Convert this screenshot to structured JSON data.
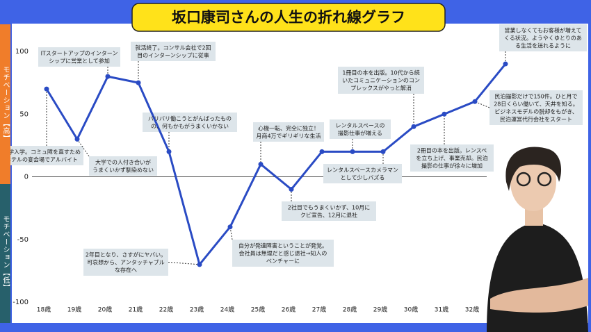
{
  "chart_data": {
    "type": "line",
    "title": "坂口康司さんの人生の折れ線グラフ",
    "side_labels": {
      "high": "モチベーション【高】",
      "low": "モチベーション【低】"
    },
    "categories": [
      "18歳",
      "19歳",
      "20歳",
      "21歳",
      "22歳",
      "23歳",
      "24歳",
      "25歳",
      "26歳",
      "27歳",
      "28歳",
      "29歳",
      "30歳",
      "31歳",
      "32歳",
      null
    ],
    "values": [
      70,
      30,
      80,
      75,
      20,
      -70,
      -40,
      10,
      -10,
      20,
      20,
      20,
      40,
      50,
      60,
      90
    ],
    "color": "#2a4bc4",
    "ylim": [
      -100,
      100
    ],
    "yticks": [
      -100,
      -50,
      0,
      50,
      100
    ],
    "annotations": [
      {
        "lines": [
          "大学入学。コミュ障を直すため",
          "ホテルの宴会場でアルバイト"
        ]
      },
      {
        "lines": [
          "ITスタートアップのインターン",
          "シップに営業として参加"
        ]
      },
      {
        "lines": [
          "就活終了。コンサル会社で2回",
          "目のインターンシップに従事"
        ]
      },
      {
        "lines": [
          "大学での人付き合いが",
          "うまくいかず馴染めない"
        ]
      },
      {
        "lines": [
          "バリバリ働こうとがんばったもの",
          "の、何もかもがうまくいかない"
        ]
      },
      {
        "lines": [
          "2年目となり、さすがにヤバい。",
          "可哀想から、アンタッチャブル",
          "な存在へ"
        ]
      },
      {
        "lines": [
          "自分が発達障害ということが発覚。",
          "会社員は無理だと感じ退社→知人の",
          "ベンチャーに"
        ]
      },
      {
        "lines": [
          "心機一転、完全に独立！",
          "月商4万でギリギリな生活"
        ]
      },
      {
        "lines": [
          "2社目でもうまくいかず、10月に",
          "クビ宣告、12月に退社"
        ]
      },
      {
        "lines": [
          "レンタルスペースの",
          "撮影仕事が増える"
        ]
      },
      {
        "lines": [
          "レンタルスペースカメラマン",
          "として少しバズる"
        ]
      },
      {
        "lines": [
          "1冊目の本を出版。10代から続",
          "いたコミュニケーションのコン",
          "プレックスがやっと解消"
        ]
      },
      {
        "lines": [
          "2冊目の本を出版。レンスペ",
          "を立ち上げ、事業売却。民泊",
          "撮影の仕事が徐々に増加"
        ]
      },
      {
        "lines": [
          "民泊撮影だけで150件。ひと月で",
          "28日くらい働いて、天井を知る。",
          "ビジネスモデルの脱却をもがき、",
          "民泊運営代行会社をスタート"
        ]
      },
      {
        "lines": [
          "営業しなくてもお客様が増えて",
          "くる状況。ようやくゆとりのあ",
          "る生活を送れるように"
        ]
      }
    ]
  }
}
